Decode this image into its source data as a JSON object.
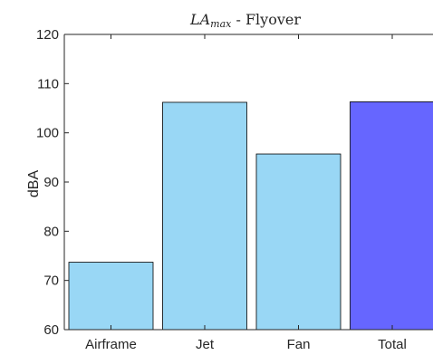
{
  "chart_data": {
    "type": "bar",
    "title_main": "LA",
    "title_sub": "max",
    "title_rest": " - Flyover",
    "xlabel": "",
    "ylabel": "dBA",
    "categories": [
      "Airframe",
      "Jet",
      "Fan",
      "Total"
    ],
    "values": [
      73.7,
      106.2,
      95.7,
      106.3
    ],
    "bar_colors": [
      "#99d7f5",
      "#99d7f5",
      "#99d7f5",
      "#6666ff"
    ],
    "ylim": [
      60,
      120
    ],
    "yticks": [
      60,
      70,
      80,
      90,
      100,
      110,
      120
    ],
    "grid": false,
    "legend": "none"
  }
}
